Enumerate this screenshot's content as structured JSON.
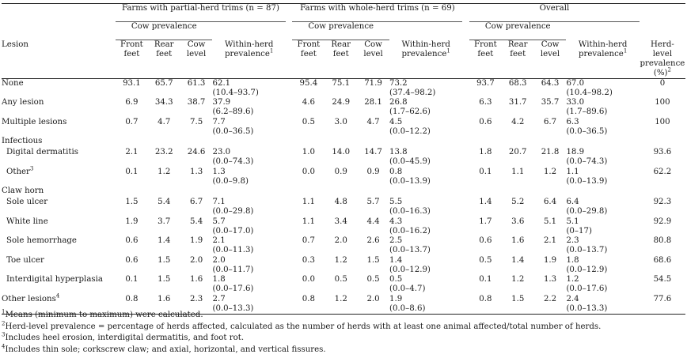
{
  "groups": [
    "Farms with partial-herd trims (n = 87)",
    "Farms with whole-herd trims (n = 69)",
    "Overall"
  ],
  "cow_prevalence_label": "Cow prevalence",
  "headers": {
    "lesion": "Lesion",
    "front": [
      "Front",
      "feet"
    ],
    "rear": [
      "Rear",
      "feet"
    ],
    "cow": [
      "Cow",
      "level"
    ],
    "within": [
      "Within-herd",
      "prevalence"
    ],
    "within_sup": "1",
    "herd": [
      "Herd-",
      "level",
      "prevalence",
      "(%)"
    ],
    "herd_sup": "2"
  },
  "rows": [
    {
      "label": "None",
      "sup": "",
      "indent": false,
      "values": [
        "93.1",
        "65.7",
        "61.3",
        "62.1",
        "(10.4–93.7)",
        "95.4",
        "75.1",
        "71.9",
        "73.2",
        "(37.4–98.2)",
        "93.7",
        "68.3",
        "64.3",
        "67.0",
        "(10.4–98.2)",
        "0"
      ]
    },
    {
      "label": "Any lesion",
      "sup": "",
      "indent": false,
      "values": [
        "6.9",
        "34.3",
        "38.7",
        "37.9",
        "(6.2–89.6)",
        "4.6",
        "24.9",
        "28.1",
        "26.8",
        "(1.7–62.6)",
        "6.3",
        "31.7",
        "35.7",
        "33.0",
        "(1.7–89.6)",
        "100"
      ]
    },
    {
      "label": "Multiple lesions",
      "sup": "",
      "indent": false,
      "values": [
        "0.7",
        "4.7",
        "7.5",
        "7.7",
        "(0.0–36.5)",
        "0.5",
        "3.0",
        "4.7",
        "4.5",
        "(0.0–12.2)",
        "0.6",
        "4.2",
        "6.7",
        "6.3",
        "(0.0–36.5)",
        "100"
      ]
    },
    {
      "section": "Infectious"
    },
    {
      "label": "Digital dermatitis",
      "sup": "",
      "indent": true,
      "values": [
        "2.1",
        "23.2",
        "24.6",
        "23.0",
        "(0.0–74.3)",
        "1.0",
        "14.0",
        "14.7",
        "13.8",
        "(0.0–45.9)",
        "1.8",
        "20.7",
        "21.8",
        "18.9",
        "(0.0–74.3)",
        "93.6"
      ]
    },
    {
      "label": "Other",
      "sup": "3",
      "indent": true,
      "values": [
        "0.1",
        "1.2",
        "1.3",
        "1.3",
        "(0.0–9.8)",
        "0.0",
        "0.9",
        "0.9",
        "0.8",
        "(0.0–13.9)",
        "0.1",
        "1.1",
        "1.2",
        "1.1",
        "(0.0–13.9)",
        "62.2"
      ]
    },
    {
      "section": "Claw horn"
    },
    {
      "label": "Sole ulcer",
      "sup": "",
      "indent": true,
      "values": [
        "1.5",
        "5.4",
        "6.7",
        "7.1",
        "(0.0–29.8)",
        "1.1",
        "4.8",
        "5.7",
        "5.5",
        "(0.0–16.3)",
        "1.4",
        "5.2",
        "6.4",
        "6.4",
        "(0.0–29.8)",
        "92.3"
      ]
    },
    {
      "label": "White line",
      "sup": "",
      "indent": true,
      "values": [
        "1.9",
        "3.7",
        "5.4",
        "5.7",
        "(0.0–17.0)",
        "1.1",
        "3.4",
        "4.4",
        "4.3",
        "(0.0–16.2)",
        "1.7",
        "3.6",
        "5.1",
        "5.1",
        "(0–17)",
        "92.9"
      ]
    },
    {
      "label": "Sole hemorrhage",
      "sup": "",
      "indent": true,
      "values": [
        "0.6",
        "1.4",
        "1.9",
        "2.1",
        "(0.0–11.3)",
        "0.7",
        "2.0",
        "2.6",
        "2.5",
        "(0.0–13.7)",
        "0.6",
        "1.6",
        "2.1",
        "2.3",
        "(0.0–13.7)",
        "80.8"
      ]
    },
    {
      "label": "Toe ulcer",
      "sup": "",
      "indent": true,
      "values": [
        "0.6",
        "1.5",
        "2.0",
        "2.0",
        "(0.0–11.7)",
        "0.3",
        "1.2",
        "1.5",
        "1.4",
        "(0.0–12.9)",
        "0.5",
        "1.4",
        "1.9",
        "1.8",
        "(0.0–12.9)",
        "68.6"
      ]
    },
    {
      "label": "Interdigital hyperplasia",
      "sup": "",
      "indent": true,
      "values": [
        "0.1",
        "1.5",
        "1.6",
        "1.8",
        "(0.0–17.6)",
        "0.0",
        "0.5",
        "0.5",
        "0.5",
        "(0.0–4.7)",
        "0.1",
        "1.2",
        "1.3",
        "1.2",
        "(0.0–17.6)",
        "54.5"
      ]
    },
    {
      "label": "Other lesions",
      "sup": "4",
      "indent": false,
      "values": [
        "0.8",
        "1.6",
        "2.3",
        "2.7",
        "(0.0–13.3)",
        "0.8",
        "1.2",
        "2.0",
        "1.9",
        "(0.0–8.6)",
        "0.8",
        "1.5",
        "2.2",
        "2.4",
        "(0.0–13.3)",
        "77.6"
      ]
    }
  ],
  "footnotes": [
    {
      "mark": "1",
      "text": "Means (minimum to maximum) were calculated."
    },
    {
      "mark": "2",
      "text": "Herd-level prevalence = percentage of herds affected, calculated as the number of herds with at least one animal affected/total number of herds."
    },
    {
      "mark": "3",
      "text": "Includes heel erosion, interdigital dermatitis, and foot rot."
    },
    {
      "mark": "4",
      "text": "Includes thin sole; corkscrew claw; and axial, horizontal, and vertical fissures."
    }
  ]
}
